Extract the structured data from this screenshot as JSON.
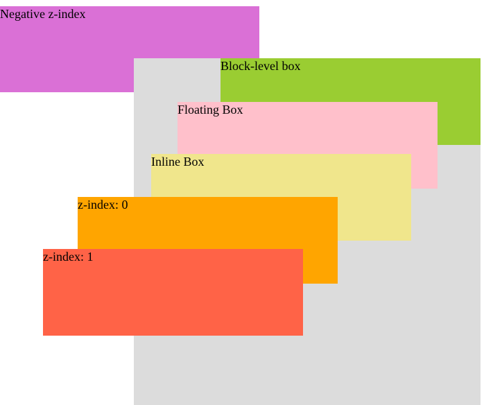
{
  "colors": {
    "container": "#dcdcdc",
    "negative": "#da70d6",
    "block": "#9acd32",
    "float": "#ffc0cb",
    "inline": "#f0e68c",
    "z0": "#ffa500",
    "z1": "#ff6347"
  },
  "boxes": {
    "negative_label": "Negative z-index",
    "block_label": "Block-level box",
    "float_label": "Floating Box",
    "inline_label": "Inline Box",
    "z0_label": "z-index: 0",
    "z1_label": "z-index: 1"
  }
}
